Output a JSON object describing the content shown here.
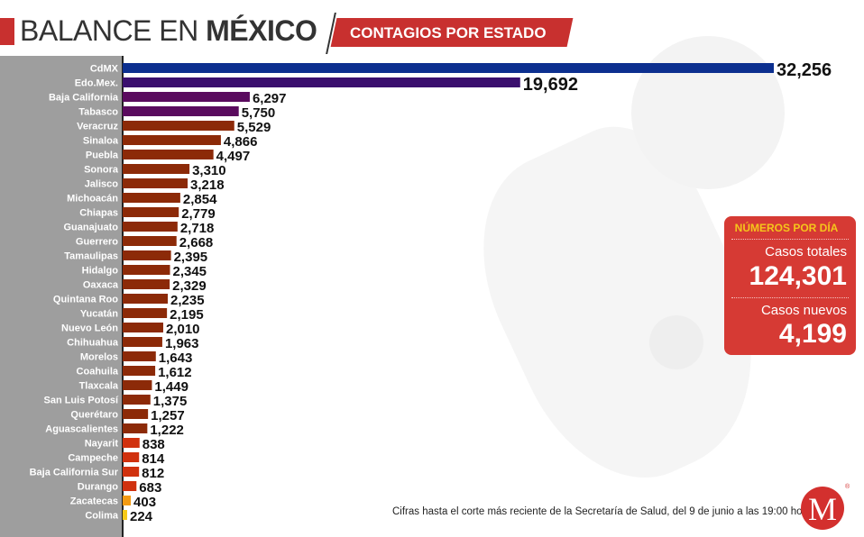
{
  "header": {
    "title_light": "BALANCE EN ",
    "title_bold": "MÉXICO",
    "subtitle": "CONTAGIOS POR ESTADO"
  },
  "stats_box": {
    "heading": "NÚMEROS POR DÍA",
    "total_label": "Casos totales",
    "total_value": "124,301",
    "new_label": "Casos nuevos",
    "new_value": "4,199"
  },
  "footnote": "Cifras hasta el corte más reciente de la Secretaría de Salud, del 9 de junio a las 19:00 horas.",
  "logo": {
    "letter": "M",
    "registered": "®"
  },
  "colors": {
    "blue": "#0c2f8f",
    "dark_purple": "#3a0f6e",
    "purple": "#5a0b5e",
    "brown": "#8c2a08",
    "red": "#d0310e",
    "orange": "#f39a12",
    "yellow": "#f7c917",
    "brand_red": "#c8302f"
  },
  "chart_data": {
    "type": "bar",
    "orientation": "horizontal",
    "title": "BALANCE EN MÉXICO — CONTAGIOS POR ESTADO",
    "xlabel": "",
    "ylabel": "",
    "xlim": [
      0,
      32256
    ],
    "grid": false,
    "categories": [
      "CdMX",
      "Edo.Mex.",
      "Baja California",
      "Tabasco",
      "Veracruz",
      "Sinaloa",
      "Puebla",
      "Sonora",
      "Jalisco",
      "Michoacán",
      "Chiapas",
      "Guanajuato",
      "Guerrero",
      "Tamaulipas",
      "Hidalgo",
      "Oaxaca",
      "Quintana Roo",
      "Yucatán",
      "Nuevo León",
      "Chihuahua",
      "Morelos",
      "Coahuila",
      "Tlaxcala",
      "San Luis Potosí",
      "Querétaro",
      "Aguascalientes",
      "Nayarit",
      "Campeche",
      "Baja California Sur",
      "Durango",
      "Zacatecas",
      "Colima"
    ],
    "values": [
      32256,
      19692,
      6297,
      5750,
      5529,
      4866,
      4497,
      3310,
      3218,
      2854,
      2779,
      2718,
      2668,
      2395,
      2345,
      2329,
      2235,
      2195,
      2010,
      1963,
      1643,
      1612,
      1449,
      1375,
      1257,
      1222,
      838,
      814,
      812,
      683,
      403,
      224
    ],
    "value_labels": [
      "32,256",
      "19,692",
      "6,297",
      "5,750",
      "5,529",
      "4,866",
      "4,497",
      "3,310",
      "3,218",
      "2,854",
      "2,779",
      "2,718",
      "2,668",
      "2,395",
      "2,345",
      "2,329",
      "2,235",
      "2,195",
      "2,010",
      "1,963",
      "1,643",
      "1,612",
      "1,449",
      "1,375",
      "1,257",
      "1,222",
      "838",
      "814",
      "812",
      "683",
      "403",
      "224"
    ],
    "bar_color_groups": [
      "blue",
      "dark_purple",
      "purple",
      "purple",
      "brown",
      "brown",
      "brown",
      "brown",
      "brown",
      "brown",
      "brown",
      "brown",
      "brown",
      "brown",
      "brown",
      "brown",
      "brown",
      "brown",
      "brown",
      "brown",
      "brown",
      "brown",
      "brown",
      "brown",
      "brown",
      "brown",
      "red",
      "red",
      "red",
      "red",
      "orange",
      "yellow"
    ]
  }
}
